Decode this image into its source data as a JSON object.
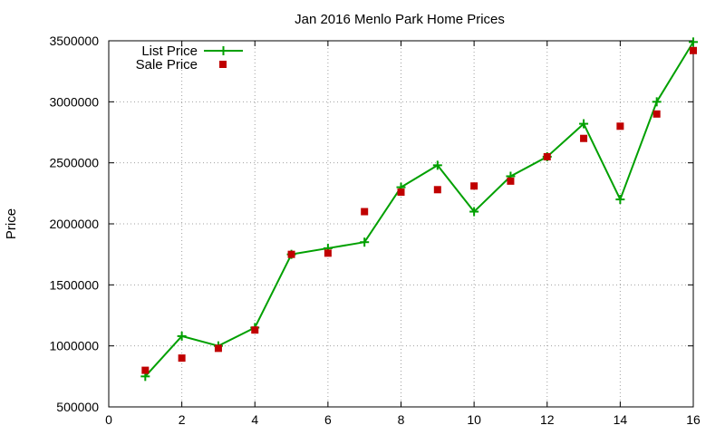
{
  "chart_data": {
    "type": "line",
    "title": "Jan 2016 Menlo Park Home Prices",
    "xlabel": "",
    "ylabel": "Price",
    "xlim": [
      0,
      16
    ],
    "ylim": [
      500000,
      3500000
    ],
    "xticks": [
      0,
      2,
      4,
      6,
      8,
      10,
      12,
      14,
      16
    ],
    "yticks": [
      500000,
      1000000,
      1500000,
      2000000,
      2500000,
      3000000,
      3500000
    ],
    "grid": true,
    "legend_position": "top-left",
    "series": [
      {
        "name": "List Price",
        "style": "line+cross",
        "color": "#00a000",
        "x": [
          1,
          2,
          3,
          4,
          5,
          6,
          7,
          8,
          9,
          10,
          11,
          12,
          13,
          14,
          15,
          16
        ],
        "y": [
          750000,
          1080000,
          1000000,
          1150000,
          1750000,
          1800000,
          1850000,
          2300000,
          2480000,
          2100000,
          2390000,
          2550000,
          2820000,
          2200000,
          3000000,
          3490000
        ]
      },
      {
        "name": "Sale Price",
        "style": "squares",
        "color": "#c00000",
        "x": [
          1,
          2,
          3,
          4,
          5,
          6,
          7,
          8,
          9,
          10,
          11,
          12,
          13,
          14,
          15,
          16
        ],
        "y": [
          800000,
          900000,
          980000,
          1130000,
          1750000,
          1760000,
          2100000,
          2260000,
          2280000,
          2310000,
          2350000,
          2550000,
          2700000,
          2800000,
          2900000,
          3420000
        ]
      }
    ]
  }
}
